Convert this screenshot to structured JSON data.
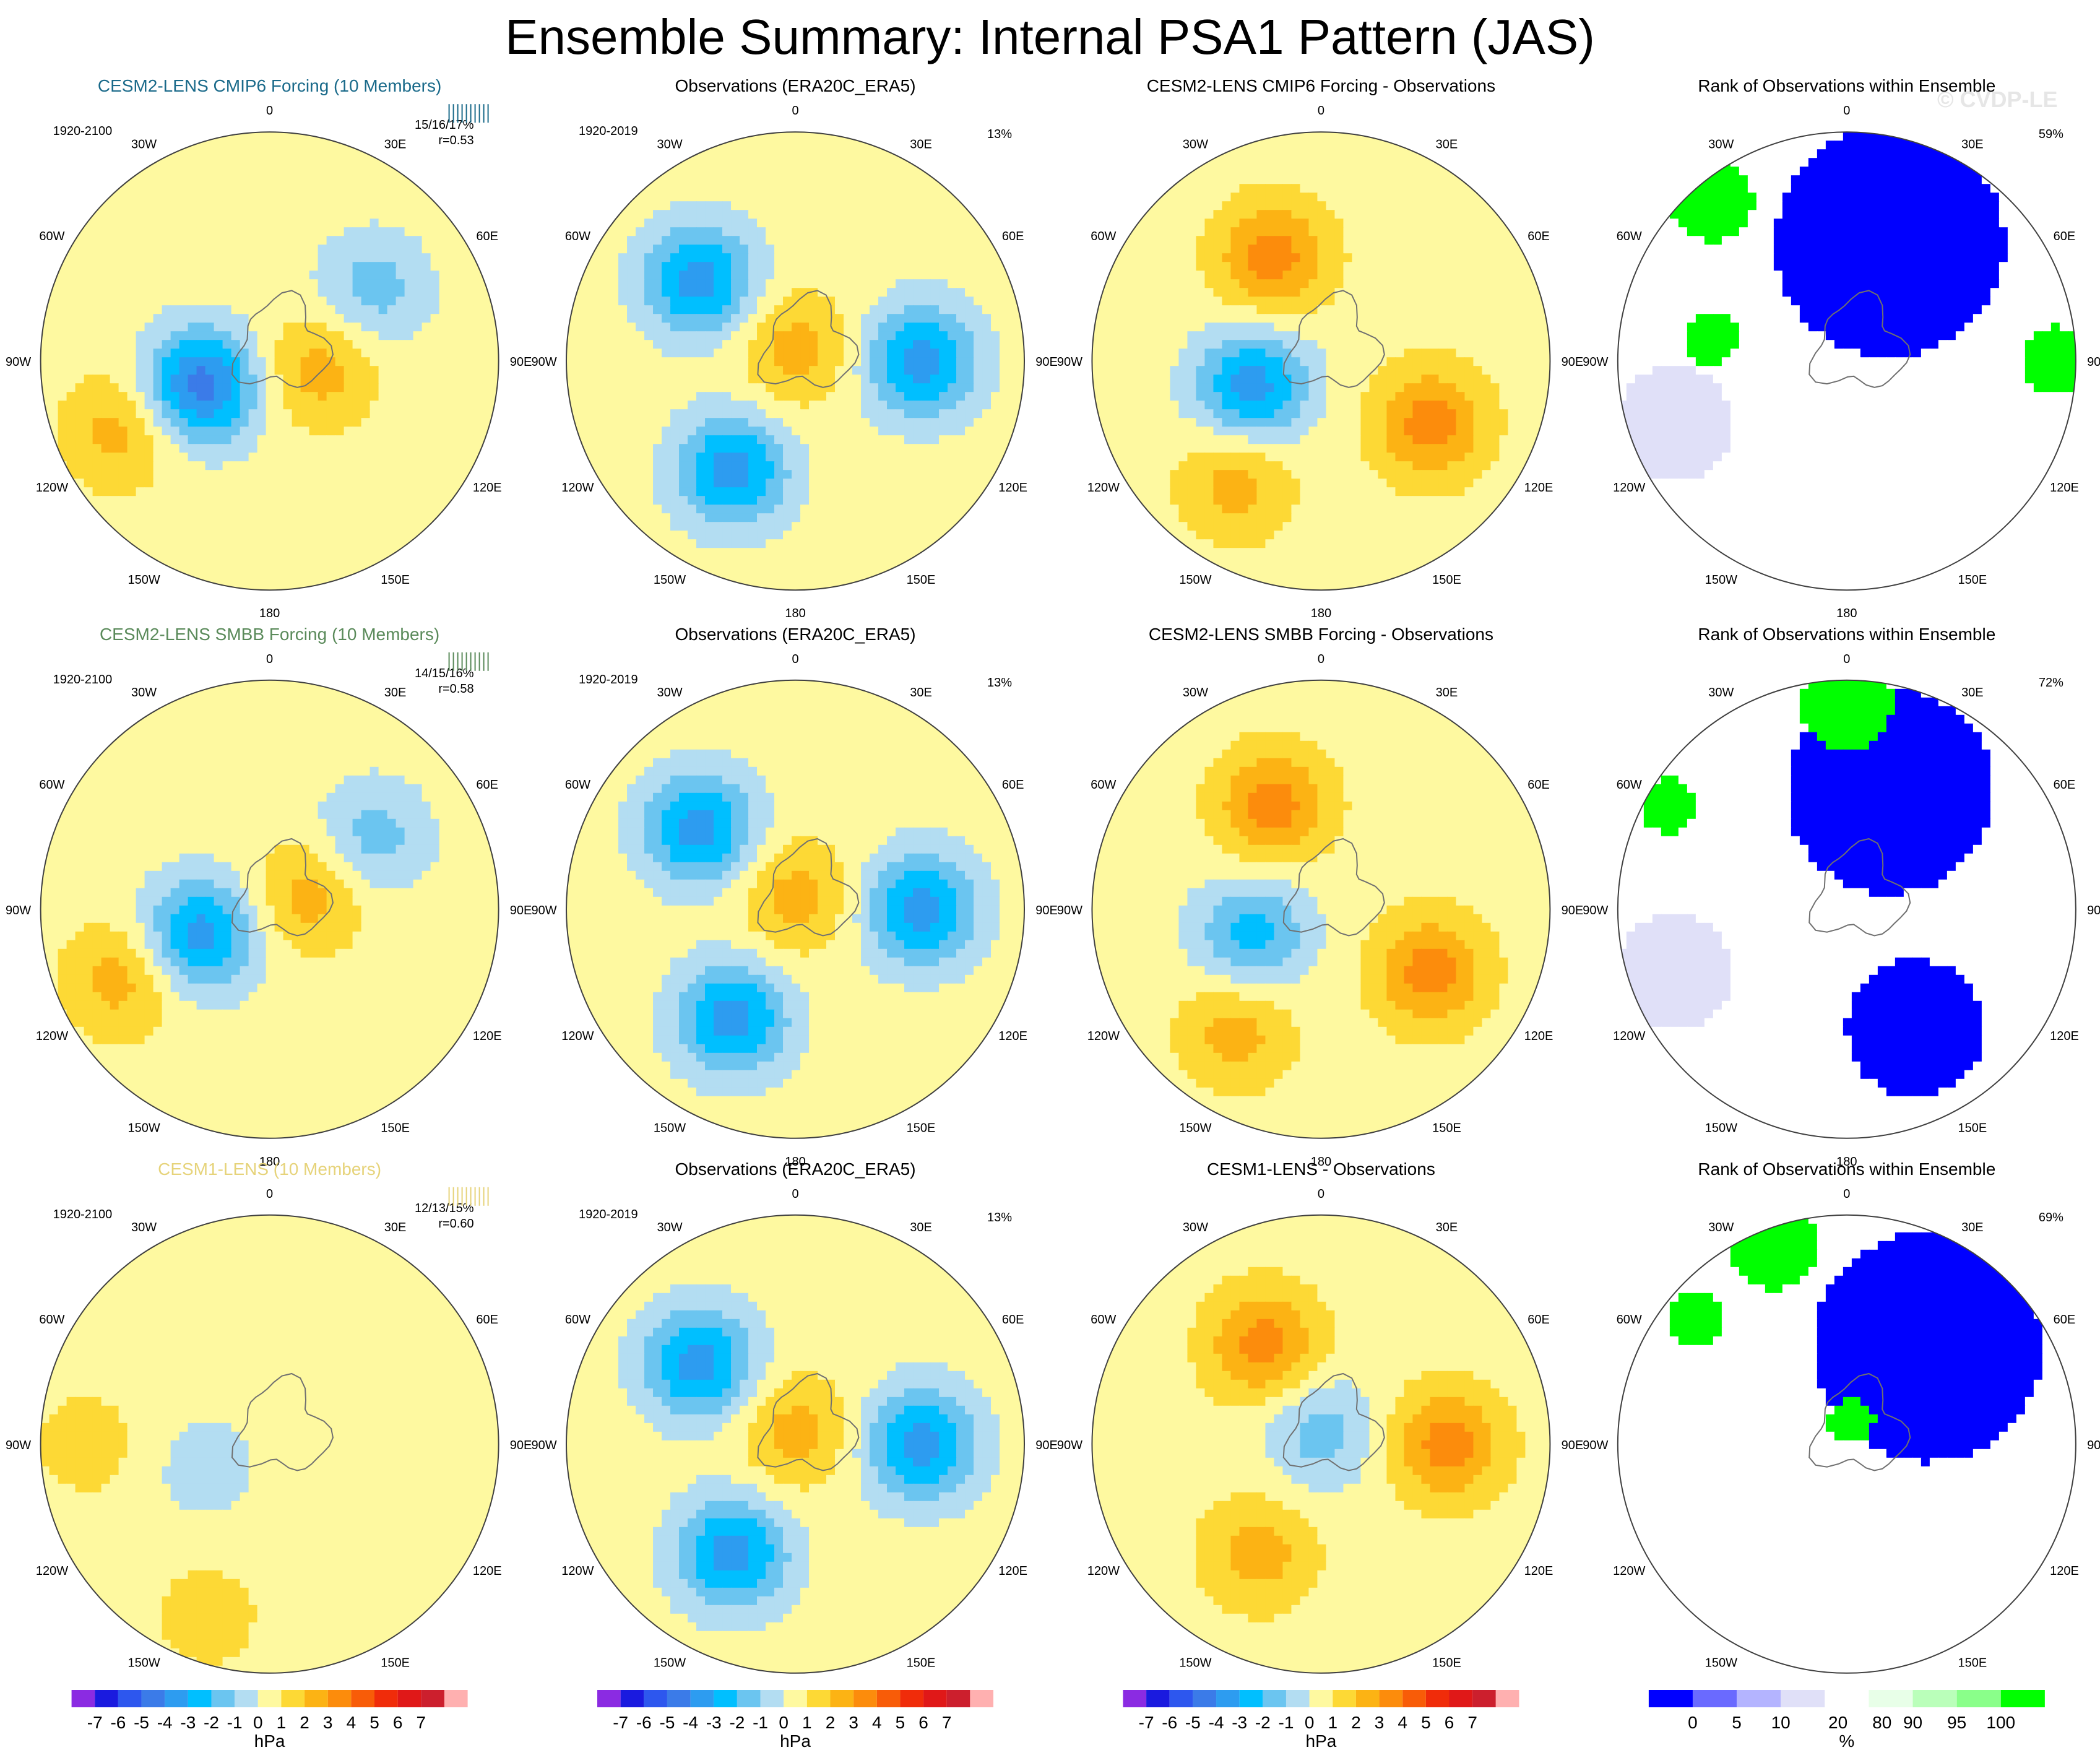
{
  "title": "Ensemble Summary: Internal PSA1 Pattern (JAS)",
  "watermark": "© CVDP-LE",
  "colors": {
    "hpa": [
      "#8b2be2",
      "#1a1adf",
      "#2d57ee",
      "#3b7be8",
      "#2d9cf0",
      "#00bfff",
      "#6bc5f0",
      "#b3ddf2",
      "#fef9a0",
      "#fdd935",
      "#fcb314",
      "#fc8c0c",
      "#f85c08",
      "#f02c0a",
      "#e01818",
      "#cc1f2d",
      "#ffb0b0"
    ],
    "rank": [
      "#0000ff",
      "#6a6aff",
      "#b4b4ff",
      "#e0e0f8",
      "#ffffff",
      "#e8ffe8",
      "#baffba",
      "#8aff8a",
      "#00ff00"
    ]
  },
  "chart_data": [
    {
      "type": "heatmap",
      "name": "psa1-cmip6",
      "projection": "south-polar-stereographic",
      "title": "CESM2-LENS CMIP6 Forcing (10 Members)",
      "title_color": "#1a6a8a",
      "period": "1920-2100",
      "stats": "15/16/17%",
      "r": "r=0.53",
      "pct": "",
      "units": "hPa",
      "scale": "hpa",
      "lobes": [
        {
          "lon": -110,
          "dist": 0.32,
          "value": -5
        },
        {
          "lon": -115,
          "dist": 0.72,
          "value": 2
        },
        {
          "lon": 100,
          "dist": 0.22,
          "value": 2
        },
        {
          "lon": 55,
          "dist": 0.55,
          "value": -2
        }
      ]
    },
    {
      "type": "heatmap",
      "name": "obs-1",
      "projection": "south-polar-stereographic",
      "title": "Observations (ERA20C_ERA5)",
      "title_color": "#000000",
      "period": "1920-2019",
      "stats": "",
      "r": "",
      "pct": "13%",
      "units": "hPa",
      "scale": "hpa",
      "lobes": [
        {
          "lon": -50,
          "dist": 0.55,
          "value": -4
        },
        {
          "lon": 90,
          "dist": 0.55,
          "value": -4
        },
        {
          "lon": -150,
          "dist": 0.55,
          "value": -4
        },
        {
          "lon": 0,
          "dist": 0.05,
          "value": 2
        }
      ]
    },
    {
      "type": "heatmap",
      "name": "diff-cmip6",
      "projection": "south-polar-stereographic",
      "title": "CESM2-LENS CMIP6 Forcing - Observations",
      "title_color": "#000000",
      "period": "",
      "stats": "",
      "r": "",
      "pct": "",
      "units": "hPa",
      "scale": "hpa",
      "lobes": [
        {
          "lon": -25,
          "dist": 0.5,
          "value": 3
        },
        {
          "lon": -110,
          "dist": 0.32,
          "value": -4
        },
        {
          "lon": -145,
          "dist": 0.65,
          "value": 2
        },
        {
          "lon": 120,
          "dist": 0.55,
          "value": 3
        }
      ]
    },
    {
      "type": "heatmap",
      "name": "rank-cmip6",
      "projection": "south-polar-stereographic",
      "title": "Rank of Observations within Ensemble",
      "title_color": "#000000",
      "period": "",
      "stats": "",
      "r": "",
      "pct": "59%",
      "units": "%",
      "scale": "rank",
      "regions": [
        {
          "lon": 20,
          "dist": 0.55,
          "rank": 0,
          "size": 0.5
        },
        {
          "lon": -40,
          "dist": 0.92,
          "rank": 100,
          "size": 0.18
        },
        {
          "lon": 90,
          "dist": 0.92,
          "rank": 100,
          "size": 0.15
        },
        {
          "lon": -80,
          "dist": 0.6,
          "rank": 100,
          "size": 0.12
        },
        {
          "lon": -110,
          "dist": 0.8,
          "rank": 20,
          "size": 0.25
        }
      ]
    },
    {
      "type": "heatmap",
      "name": "psa1-smbb",
      "projection": "south-polar-stereographic",
      "title": "CESM2-LENS SMBB Forcing (10 Members)",
      "title_color": "#5a8a5a",
      "period": "1920-2100",
      "stats": "14/15/16%",
      "r": "r=0.58",
      "pct": "",
      "units": "hPa",
      "scale": "hpa",
      "lobes": [
        {
          "lon": -110,
          "dist": 0.32,
          "value": -4
        },
        {
          "lon": -115,
          "dist": 0.72,
          "value": 2
        },
        {
          "lon": 70,
          "dist": 0.18,
          "value": 2
        },
        {
          "lon": 55,
          "dist": 0.55,
          "value": -2
        }
      ]
    },
    {
      "type": "heatmap",
      "name": "obs-2",
      "projection": "south-polar-stereographic",
      "title": "Observations (ERA20C_ERA5)",
      "title_color": "#000000",
      "period": "1920-2019",
      "stats": "",
      "r": "",
      "pct": "13%",
      "units": "hPa",
      "scale": "hpa",
      "lobes": [
        {
          "lon": -50,
          "dist": 0.55,
          "value": -4
        },
        {
          "lon": 90,
          "dist": 0.55,
          "value": -4
        },
        {
          "lon": -150,
          "dist": 0.55,
          "value": -4
        },
        {
          "lon": 0,
          "dist": 0.05,
          "value": 2
        }
      ]
    },
    {
      "type": "heatmap",
      "name": "diff-smbb",
      "projection": "south-polar-stereographic",
      "title": "CESM2-LENS SMBB Forcing - Observations",
      "title_color": "#000000",
      "period": "",
      "stats": "",
      "r": "",
      "pct": "",
      "units": "hPa",
      "scale": "hpa",
      "lobes": [
        {
          "lon": -25,
          "dist": 0.5,
          "value": 3
        },
        {
          "lon": -110,
          "dist": 0.32,
          "value": -3
        },
        {
          "lon": -145,
          "dist": 0.65,
          "value": 2
        },
        {
          "lon": 120,
          "dist": 0.55,
          "value": 3
        }
      ]
    },
    {
      "type": "heatmap",
      "name": "rank-smbb",
      "projection": "south-polar-stereographic",
      "title": "Rank of Observations within Ensemble",
      "title_color": "#000000",
      "period": "",
      "stats": "",
      "r": "",
      "pct": "72%",
      "units": "%",
      "scale": "rank",
      "regions": [
        {
          "lon": 20,
          "dist": 0.55,
          "rank": 0,
          "size": 0.45
        },
        {
          "lon": 150,
          "dist": 0.6,
          "rank": 0,
          "size": 0.3
        },
        {
          "lon": 0,
          "dist": 0.9,
          "rank": 100,
          "size": 0.2
        },
        {
          "lon": -60,
          "dist": 0.9,
          "rank": 100,
          "size": 0.12
        },
        {
          "lon": -110,
          "dist": 0.8,
          "rank": 20,
          "size": 0.25
        }
      ]
    },
    {
      "type": "heatmap",
      "name": "psa1-cesm1",
      "projection": "south-polar-stereographic",
      "title": "CESM1-LENS (10 Members)",
      "title_color": "#e6d37a",
      "period": "1920-2100",
      "stats": "12/13/15%",
      "r": "r=0.60",
      "pct": "",
      "units": "hPa",
      "scale": "hpa",
      "lobes": [
        {
          "lon": -110,
          "dist": 0.3,
          "value": -1
        },
        {
          "lon": -160,
          "dist": 0.8,
          "value": 1
        },
        {
          "lon": -90,
          "dist": 0.8,
          "value": 1
        }
      ]
    },
    {
      "type": "heatmap",
      "name": "obs-3",
      "projection": "south-polar-stereographic",
      "title": "Observations (ERA20C_ERA5)",
      "title_color": "#000000",
      "period": "1920-2019",
      "stats": "",
      "r": "",
      "pct": "13%",
      "units": "hPa",
      "scale": "hpa",
      "lobes": [
        {
          "lon": -50,
          "dist": 0.55,
          "value": -4
        },
        {
          "lon": 90,
          "dist": 0.55,
          "value": -4
        },
        {
          "lon": -150,
          "dist": 0.55,
          "value": -4
        },
        {
          "lon": 0,
          "dist": 0.05,
          "value": 2
        }
      ]
    },
    {
      "type": "heatmap",
      "name": "diff-cesm1",
      "projection": "south-polar-stereographic",
      "title": "CESM1-LENS - Observations",
      "title_color": "#000000",
      "period": "",
      "stats": "",
      "r": "",
      "pct": "",
      "units": "hPa",
      "scale": "hpa",
      "lobes": [
        {
          "lon": -30,
          "dist": 0.5,
          "value": 3
        },
        {
          "lon": 90,
          "dist": 0.55,
          "value": 3
        },
        {
          "lon": -150,
          "dist": 0.55,
          "value": 2
        },
        {
          "lon": 0,
          "dist": 0.05,
          "value": -2
        }
      ]
    },
    {
      "type": "heatmap",
      "name": "rank-cesm1",
      "projection": "south-polar-stereographic",
      "title": "Rank of Observations within Ensemble",
      "title_color": "#000000",
      "period": "",
      "stats": "",
      "r": "",
      "pct": "69%",
      "units": "%",
      "scale": "rank",
      "regions": [
        {
          "lon": 40,
          "dist": 0.55,
          "rank": 0,
          "size": 0.5
        },
        {
          "lon": -20,
          "dist": 0.93,
          "rank": 100,
          "size": 0.2
        },
        {
          "lon": -50,
          "dist": 0.85,
          "rank": 100,
          "size": 0.12
        },
        {
          "lon": 10,
          "dist": 0.1,
          "rank": 100,
          "size": 0.1
        }
      ]
    }
  ],
  "map_labels": {
    "lon_labels": [
      "0",
      "30E",
      "60E",
      "90E",
      "120E",
      "150E",
      "180",
      "150W",
      "120W",
      "90W",
      "60W",
      "30W"
    ]
  },
  "colorbars": [
    {
      "name": "colorbar-hpa-1",
      "units": "hPa",
      "ticks": [
        "-7",
        "-6",
        "-5",
        "-4",
        "-3",
        "-2",
        "-1",
        "0",
        "1",
        "2",
        "3",
        "4",
        "5",
        "6",
        "7"
      ]
    },
    {
      "name": "colorbar-hpa-2",
      "units": "hPa",
      "ticks": [
        "-7",
        "-6",
        "-5",
        "-4",
        "-3",
        "-2",
        "-1",
        "0",
        "1",
        "2",
        "3",
        "4",
        "5",
        "6",
        "7"
      ]
    },
    {
      "name": "colorbar-hpa-3",
      "units": "hPa",
      "ticks": [
        "-7",
        "-6",
        "-5",
        "-4",
        "-3",
        "-2",
        "-1",
        "0",
        "1",
        "2",
        "3",
        "4",
        "5",
        "6",
        "7"
      ]
    },
    {
      "name": "colorbar-rank",
      "units": "%",
      "ticks": [
        "0",
        "5",
        "10",
        "20",
        "80",
        "90",
        "95",
        "100"
      ]
    }
  ]
}
